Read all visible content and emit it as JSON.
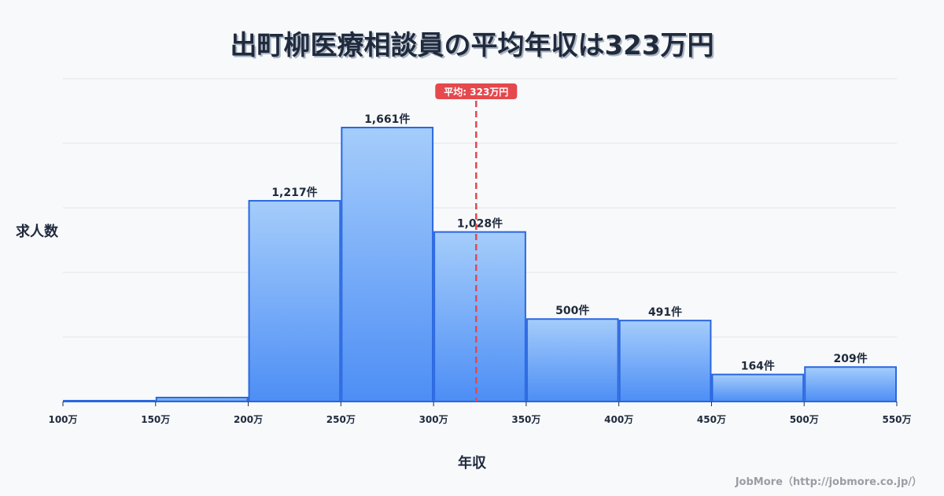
{
  "chart_data": {
    "type": "bar",
    "title": "出町柳医療相談員の平均年収は323万円",
    "xlabel": "年収",
    "ylabel": "求人数",
    "categories": [
      "100万-150万",
      "150万-200万",
      "200万-250万",
      "250万-300万",
      "300万-350万",
      "350万-400万",
      "400万-450万",
      "450万-500万",
      "500万-550万"
    ],
    "bin_edges": [
      100,
      150,
      200,
      250,
      300,
      350,
      400,
      450,
      500,
      550
    ],
    "tick_labels": [
      "100万",
      "150万",
      "200万",
      "250万",
      "300万",
      "350万",
      "400万",
      "450万",
      "500万",
      "550万"
    ],
    "values": [
      5,
      24,
      1217,
      1661,
      1028,
      500,
      491,
      164,
      209
    ],
    "data_labels": [
      "",
      "",
      "1,217件",
      "1,661件",
      "1,028件",
      "500件",
      "491件",
      "164件",
      "209件"
    ],
    "mean": 323,
    "mean_label": "平均: 323万円",
    "ylim": [
      0,
      1957
    ],
    "grid": true,
    "legend": "none"
  },
  "credit": "JobMore（http://jobmore.co.jp/）",
  "colors": {
    "bar_top": "#a5cdfb",
    "bar_bottom": "#4d8ef5",
    "bar_border": "#2a67e0",
    "mean_line": "#e5484d",
    "grid": "#e2e5ea"
  }
}
